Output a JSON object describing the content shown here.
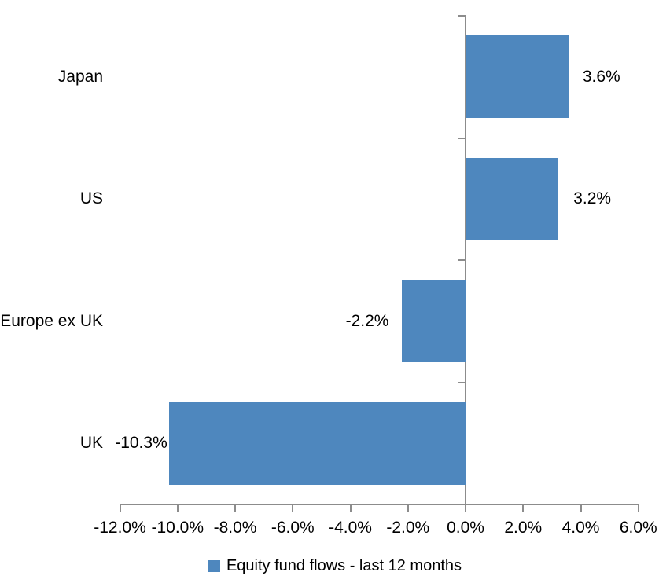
{
  "chart_data": {
    "type": "bar",
    "orientation": "horizontal",
    "title": "",
    "categories": [
      "Japan",
      "US",
      "Europe ex UK",
      "UK"
    ],
    "values": [
      3.6,
      3.2,
      -2.2,
      -10.3
    ],
    "value_labels": [
      "3.6%",
      "3.2%",
      "-2.2%",
      "-10.3%"
    ],
    "xlim": [
      -12,
      6
    ],
    "x_tick_step": 2,
    "x_tick_labels": [
      "-12.0%",
      "-10.0%",
      "-8.0%",
      "-6.0%",
      "-4.0%",
      "-2.0%",
      "0.0%",
      "2.0%",
      "4.0%",
      "6.0%"
    ],
    "legend": {
      "label": "Equity fund flows - last 12 months",
      "position": "bottom"
    },
    "grid": false,
    "colors": {
      "bar": "#4E87BE",
      "axis": "#8C8C8C",
      "text": "#000000",
      "background": "#FFFFFF"
    }
  }
}
